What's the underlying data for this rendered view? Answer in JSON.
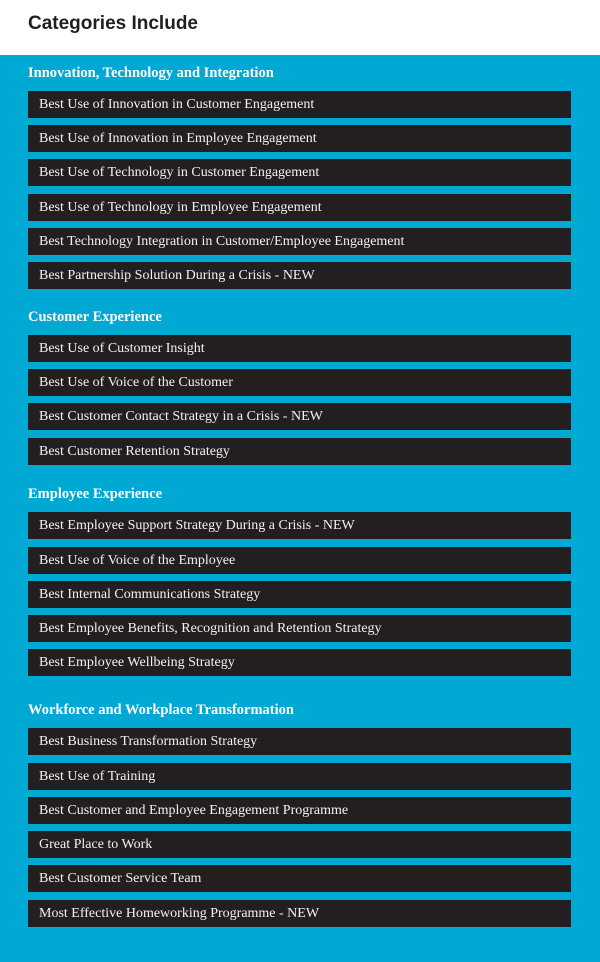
{
  "header": {
    "title": "Categories Include"
  },
  "sections": [
    {
      "title": "Innovation, Technology and Integration",
      "items": [
        "Best Use of Innovation in Customer Engagement",
        "Best Use of Innovation in Employee Engagement",
        "Best Use of Technology in Customer Engagement",
        "Best Use of Technology in Employee Engagement",
        "Best Technology Integration in Customer/Employee Engagement",
        "Best Partnership Solution During a Crisis - NEW"
      ]
    },
    {
      "title": "Customer Experience",
      "items": [
        "Best Use of Customer Insight",
        "Best Use of Voice of the Customer",
        "Best Customer Contact Strategy in a Crisis - NEW",
        "Best Customer Retention Strategy"
      ]
    },
    {
      "title": "Employee Experience",
      "items": [
        "Best Employee Support Strategy During a Crisis - NEW",
        "Best Use of Voice of the Employee",
        "Best Internal Communications Strategy",
        "Best Employee Benefits, Recognition and Retention Strategy",
        "Best Employee Wellbeing Strategy"
      ]
    },
    {
      "title": "Workforce and Workplace Transformation",
      "items": [
        "Best Business Transformation Strategy",
        "Best Use of Training",
        "Best Customer and Employee Engagement Programme",
        "Great Place to Work",
        "Best Customer Service Team",
        "Most Effective Homeworking Programme - NEW"
      ]
    }
  ]
}
